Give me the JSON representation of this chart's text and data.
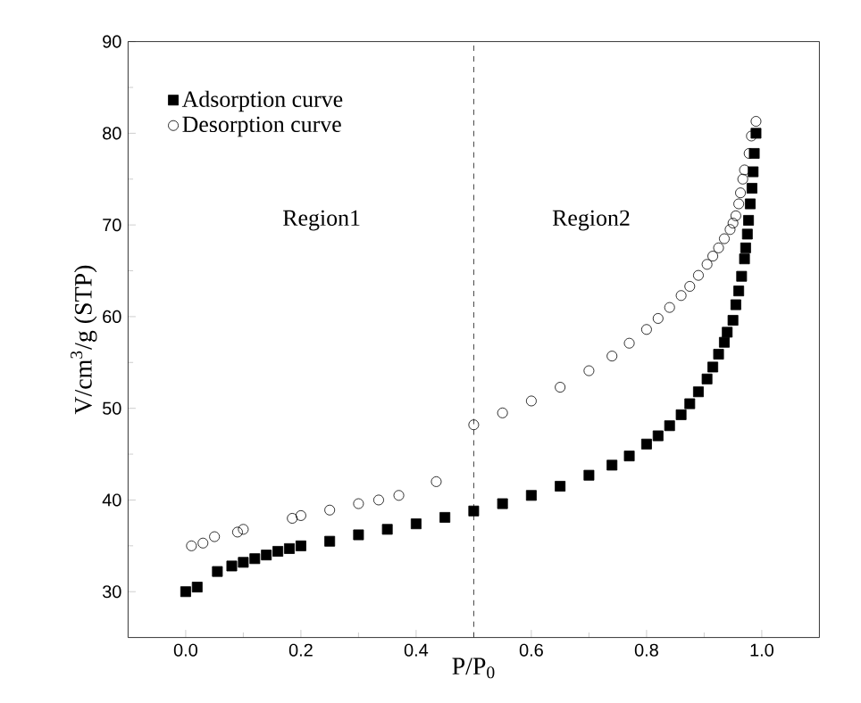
{
  "chart_data": {
    "type": "scatter",
    "xlabel": "P/P$_{0}$",
    "ylabel": "V/cm$^{3}$/g (STP)",
    "xlim": [
      -0.1,
      1.1
    ],
    "ylim": [
      25,
      90
    ],
    "xticks": [
      {
        "value": 0,
        "label": "0.0"
      },
      0.2,
      0.4,
      0.6,
      0.8,
      {
        "value": 1,
        "label": "1.0"
      }
    ],
    "yticks": [
      30,
      40,
      50,
      60,
      70,
      80,
      90
    ],
    "legend": "top left",
    "grid": false,
    "ref_lines": [
      {
        "axis": "x",
        "value": 0.5,
        "color": "#000000",
        "line_style": "dashed"
      }
    ],
    "annotations": [
      "Region1",
      "Region2"
    ],
    "series": [
      {
        "name": "Adsorption curve",
        "color": "#000000",
        "marker": "square",
        "x": [
          0.0,
          0.02,
          0.055,
          0.08,
          0.1,
          0.12,
          0.14,
          0.16,
          0.18,
          0.2,
          0.25,
          0.3,
          0.35,
          0.4,
          0.45,
          0.5,
          0.55,
          0.6,
          0.65,
          0.7,
          0.74,
          0.77,
          0.8,
          0.82,
          0.84,
          0.86,
          0.875,
          0.89,
          0.905,
          0.915,
          0.925,
          0.935,
          0.94,
          0.95,
          0.955,
          0.96,
          0.965,
          0.97,
          0.972,
          0.975,
          0.977,
          0.98,
          0.983,
          0.985,
          0.987,
          0.99
        ],
        "values": [
          30.0,
          30.5,
          32.2,
          32.8,
          33.2,
          33.6,
          34.0,
          34.4,
          34.7,
          35.0,
          35.5,
          36.2,
          36.8,
          37.4,
          38.1,
          38.8,
          39.6,
          40.5,
          41.5,
          42.7,
          43.8,
          44.8,
          46.1,
          47.0,
          48.1,
          49.3,
          50.5,
          51.8,
          53.2,
          54.5,
          55.9,
          57.2,
          58.3,
          59.6,
          61.3,
          62.8,
          64.4,
          66.3,
          67.5,
          69.0,
          70.5,
          72.3,
          74.0,
          75.8,
          77.8,
          80.0
        ]
      },
      {
        "name": "Desorption curve",
        "color": "#000000",
        "marker": "circle",
        "x": [
          0.01,
          0.03,
          0.05,
          0.09,
          0.1,
          0.185,
          0.2,
          0.25,
          0.3,
          0.335,
          0.37,
          0.435,
          0.5,
          0.55,
          0.6,
          0.65,
          0.7,
          0.74,
          0.77,
          0.8,
          0.82,
          0.84,
          0.86,
          0.875,
          0.89,
          0.905,
          0.915,
          0.925,
          0.935,
          0.945,
          0.95,
          0.955,
          0.96,
          0.963,
          0.967,
          0.97,
          0.978,
          0.982,
          0.99
        ],
        "values": [
          35.0,
          35.3,
          36.0,
          36.5,
          36.8,
          38.0,
          38.3,
          38.9,
          39.6,
          40.0,
          40.5,
          42.0,
          48.2,
          49.5,
          50.8,
          52.3,
          54.1,
          55.7,
          57.1,
          58.6,
          59.8,
          61.0,
          62.3,
          63.3,
          64.5,
          65.7,
          66.6,
          67.5,
          68.5,
          69.5,
          70.2,
          71.0,
          72.3,
          73.5,
          75.0,
          76.0,
          77.8,
          79.7,
          81.3
        ]
      }
    ]
  }
}
